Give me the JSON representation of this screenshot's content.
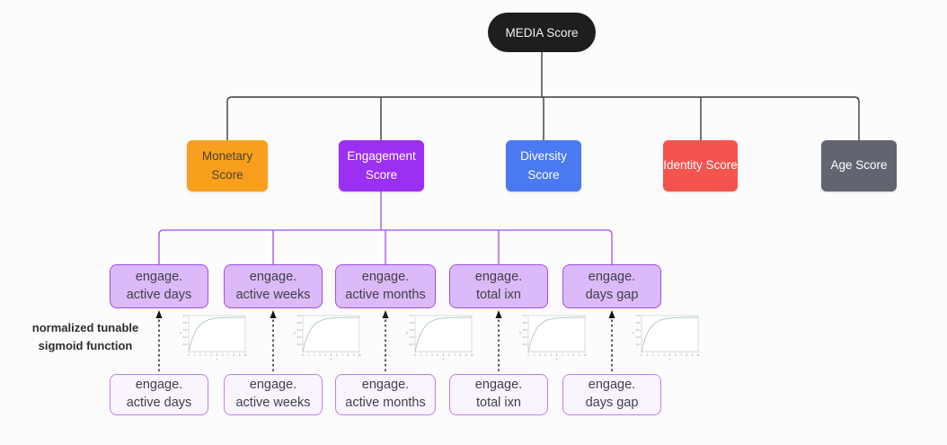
{
  "diagram": {
    "root": {
      "label": "MEDIA Score",
      "color": "#1e1e21"
    },
    "scores": [
      {
        "id": "monetary",
        "label": "Monetary Score",
        "color": "#f8a01d",
        "text_color": "#4c4130"
      },
      {
        "id": "engagement",
        "label": "Engagement Score",
        "color": "#9b2ff2",
        "text_color": "#ffffff"
      },
      {
        "id": "diversity",
        "label": "Diversity Score",
        "color": "#4a79f2",
        "text_color": "#ffffff"
      },
      {
        "id": "identity",
        "label": "Identity Score",
        "color": "#f4534e",
        "text_color": "#ffffff"
      },
      {
        "id": "age",
        "label": "Age Score",
        "color": "#62656f",
        "text_color": "#ffffff"
      }
    ],
    "engagement_children": [
      {
        "label": "engage.\nactive days"
      },
      {
        "label": "engage.\nactive weeks"
      },
      {
        "label": "engage.\nactive months"
      },
      {
        "label": "engage.\ntotal ixn"
      },
      {
        "label": "engage.\ndays gap"
      }
    ],
    "raw_inputs": [
      {
        "label": "engage.\nactive days"
      },
      {
        "label": "engage.\nactive weeks"
      },
      {
        "label": "engage.\nactive months"
      },
      {
        "label": "engage.\ntotal ixn"
      },
      {
        "label": "engage.\ndays gap"
      }
    ],
    "transform_label": "normalized tunable\nsigmoid function",
    "connector_colors": {
      "top_tree": "#3a3a3a",
      "engagement_tree": "#a24ce8",
      "transform_arrows": "#141414"
    }
  },
  "chart_data": {
    "type": "line",
    "title": "normalized tunable sigmoid function",
    "instances": 5,
    "xlabel": "x",
    "ylabel": "y",
    "xlim": [
      0,
      10
    ],
    "ylim": [
      0,
      1
    ],
    "x_ticks": [
      0,
      1,
      2,
      3,
      4,
      5,
      6,
      7,
      8,
      9,
      10
    ],
    "y_ticks": [
      0.2,
      0.4,
      0.6,
      0.8,
      1.0
    ],
    "grid": false,
    "legend": false,
    "curve_color": "#a9c7cb",
    "x": [
      0,
      0.5,
      1,
      1.5,
      2,
      2.5,
      3,
      3.5,
      4,
      4.5,
      5,
      5.5,
      6,
      6.5,
      7,
      7.5,
      8,
      8.5,
      9,
      9.5,
      10
    ],
    "series": [
      {
        "name": "sigmoid",
        "values": [
          0,
          0.313,
          0.528,
          0.675,
          0.777,
          0.847,
          0.895,
          0.928,
          0.95,
          0.966,
          0.976,
          0.984,
          0.989,
          0.992,
          0.995,
          0.996,
          0.998,
          0.998,
          0.999,
          0.999,
          0.999
        ]
      }
    ]
  }
}
